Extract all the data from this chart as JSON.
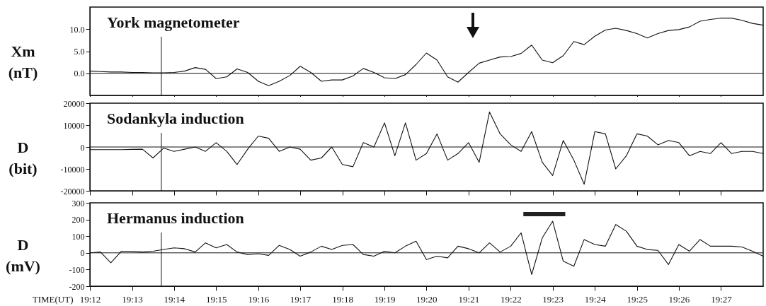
{
  "chart_data": [
    {
      "type": "line",
      "title": "York magnetometer",
      "ylabel": "Xm (nT)",
      "tick_labels": "y",
      "x": [
        19.2,
        19.2042,
        19.2083,
        19.2125,
        19.2167,
        19.2208,
        19.225,
        19.2292,
        19.2333,
        19.2375,
        19.2417,
        19.2458,
        19.25,
        19.2542,
        19.2583,
        19.2625,
        19.2667,
        19.2708,
        19.275,
        19.2792,
        19.2833,
        19.2875,
        19.2917,
        19.2958,
        19.3,
        19.3042,
        19.3083,
        19.3125,
        19.3167,
        19.3208,
        19.325,
        19.3292,
        19.3333,
        19.3375,
        19.3417,
        19.3458,
        19.35,
        19.3542,
        19.3583,
        19.3625,
        19.3667,
        19.3708,
        19.375,
        19.3792,
        19.3833,
        19.3875,
        19.3917,
        19.3958,
        19.4,
        19.4042,
        19.4083,
        19.4125,
        19.4167,
        19.4208,
        19.425,
        19.4292,
        19.4333,
        19.4375,
        19.4417,
        19.4458,
        19.45,
        19.4542,
        19.4583,
        19.4625,
        19.4667
      ],
      "xticks": [
        {
          "value": 19.2,
          "label": null
        },
        {
          "value": 19.2167,
          "label": null
        },
        {
          "value": 19.2333,
          "label": null
        },
        {
          "value": 19.25,
          "label": null
        },
        {
          "value": 19.2667,
          "label": null
        },
        {
          "value": 19.2833,
          "label": null
        },
        {
          "value": 19.3,
          "label": null
        },
        {
          "value": 19.3167,
          "label": null
        },
        {
          "value": 19.3333,
          "label": null
        },
        {
          "value": 19.35,
          "label": null
        },
        {
          "value": 19.3667,
          "label": null
        },
        {
          "value": 19.3833,
          "label": null
        },
        {
          "value": 19.4,
          "label": null
        },
        {
          "value": 19.4167,
          "label": null
        },
        {
          "value": 19.4333,
          "label": null
        },
        {
          "value": 19.45,
          "label": null
        }
      ],
      "series": [
        {
          "color": "#111111",
          "values": [
            0.5,
            0.4,
            0.3,
            0.3,
            0.2,
            0.2,
            0.1,
            0.1,
            0.2,
            0.5,
            1.3,
            0.9,
            -1.2,
            -0.8,
            1.0,
            0.2,
            -1.8,
            -2.8,
            -1.8,
            -0.5,
            1.6,
            0.2,
            -1.8,
            -1.5,
            -1.5,
            -0.6,
            1.1,
            0.2,
            -1.0,
            -1.2,
            -0.3,
            2.0,
            4.6,
            3.0,
            -0.8,
            -2.0,
            0.2,
            2.3,
            3.0,
            3.7,
            3.8,
            4.5,
            6.4,
            3.0,
            2.4,
            4.0,
            7.2,
            6.5,
            8.4,
            9.8,
            10.2,
            9.7,
            9.0,
            8.0,
            9.0,
            9.7,
            9.9,
            10.5,
            11.8,
            12.2,
            12.5,
            12.5,
            12.0,
            11.3,
            10.9
          ]
        }
      ],
      "xlim": [
        19.2,
        19.4667
      ],
      "ylim": [
        -5,
        15
      ],
      "yticks": [
        {
          "value": 0,
          "label": "0.0"
        },
        {
          "value": 5,
          "label": "5.0"
        },
        {
          "value": 10,
          "label": "10.0"
        }
      ],
      "ref_lines": [
        {
          "axis": "y",
          "value": 0,
          "color": "#111111"
        },
        {
          "axis": "x",
          "value": 19.2283,
          "color": "#111111"
        }
      ]
    },
    {
      "type": "line",
      "title": "Sodankyla  induction",
      "ylabel": "D (bit)",
      "tick_labels": "y",
      "x": [
        19.2,
        19.2042,
        19.2083,
        19.2125,
        19.2167,
        19.2208,
        19.225,
        19.2292,
        19.2333,
        19.2375,
        19.2417,
        19.2458,
        19.25,
        19.2542,
        19.2583,
        19.2625,
        19.2667,
        19.2708,
        19.275,
        19.2792,
        19.2833,
        19.2875,
        19.2917,
        19.2958,
        19.3,
        19.3042,
        19.3083,
        19.3125,
        19.3167,
        19.3208,
        19.325,
        19.3292,
        19.3333,
        19.3375,
        19.3417,
        19.3458,
        19.35,
        19.3542,
        19.3583,
        19.3625,
        19.3667,
        19.3708,
        19.375,
        19.3792,
        19.3833,
        19.3875,
        19.3917,
        19.3958,
        19.4,
        19.4042,
        19.4083,
        19.4125,
        19.4167,
        19.4208,
        19.425,
        19.4292,
        19.4333,
        19.4375,
        19.4417,
        19.4458,
        19.45,
        19.4542,
        19.4583,
        19.4625,
        19.4667
      ],
      "xticks": [
        {
          "value": 19.2,
          "label": null
        },
        {
          "value": 19.2167,
          "label": null
        },
        {
          "value": 19.2333,
          "label": null
        },
        {
          "value": 19.25,
          "label": null
        },
        {
          "value": 19.2667,
          "label": null
        },
        {
          "value": 19.2833,
          "label": null
        },
        {
          "value": 19.3,
          "label": null
        },
        {
          "value": 19.3167,
          "label": null
        },
        {
          "value": 19.3333,
          "label": null
        },
        {
          "value": 19.35,
          "label": null
        },
        {
          "value": 19.3667,
          "label": null
        },
        {
          "value": 19.3833,
          "label": null
        },
        {
          "value": 19.4,
          "label": null
        },
        {
          "value": 19.4167,
          "label": null
        },
        {
          "value": 19.4333,
          "label": null
        },
        {
          "value": 19.45,
          "label": null
        }
      ],
      "series": [
        {
          "color": "#111111",
          "values": [
            -1200,
            -1200,
            -1200,
            -1200,
            -1100,
            -1000,
            -5000,
            -500,
            -2000,
            -1000,
            0,
            -2000,
            2000,
            -2000,
            -8000,
            -1000,
            5000,
            4000,
            -2000,
            0,
            -1000,
            -6000,
            -5000,
            0,
            -8000,
            -9000,
            2000,
            0,
            11000,
            -4000,
            11000,
            -6000,
            -3000,
            6000,
            -6000,
            -3000,
            2000,
            -7000,
            16000,
            6000,
            1000,
            -2000,
            7000,
            -7000,
            -13000,
            3000,
            -6000,
            -17000,
            7000,
            6000,
            -10000,
            -4000,
            6000,
            5000,
            1000,
            3000,
            2000,
            -4000,
            -2000,
            -3000,
            2000,
            -3000,
            -2000,
            -2000,
            -3000
          ]
        }
      ],
      "xlim": [
        19.2,
        19.4667
      ],
      "ylim": [
        -20000,
        20000
      ],
      "yticks": [
        -20000,
        -10000,
        0,
        10000,
        20000
      ],
      "ref_lines": [
        {
          "axis": "y",
          "value": 0,
          "color": "#111111"
        },
        {
          "axis": "x",
          "value": 19.2283,
          "color": "#111111"
        }
      ]
    },
    {
      "type": "line",
      "title": "Hermanus  induction",
      "ylabel": "D (mV)",
      "xlabel": "TIME(UT)",
      "x": [
        19.2,
        19.2042,
        19.2083,
        19.2125,
        19.2167,
        19.2208,
        19.225,
        19.2292,
        19.2333,
        19.2375,
        19.2417,
        19.2458,
        19.25,
        19.2542,
        19.2583,
        19.2625,
        19.2667,
        19.2708,
        19.275,
        19.2792,
        19.2833,
        19.2875,
        19.2917,
        19.2958,
        19.3,
        19.3042,
        19.3083,
        19.3125,
        19.3167,
        19.3208,
        19.325,
        19.3292,
        19.3333,
        19.3375,
        19.3417,
        19.3458,
        19.35,
        19.3542,
        19.3583,
        19.3625,
        19.3667,
        19.3708,
        19.375,
        19.3792,
        19.3833,
        19.3875,
        19.3917,
        19.3958,
        19.4,
        19.4042,
        19.4083,
        19.4125,
        19.4167,
        19.4208,
        19.425,
        19.4292,
        19.4333,
        19.4375,
        19.4417,
        19.4458,
        19.45,
        19.4542,
        19.4583,
        19.4625,
        19.4667
      ],
      "series": [
        {
          "color": "#111111",
          "values": [
            0,
            5,
            -60,
            10,
            10,
            5,
            10,
            20,
            30,
            25,
            5,
            60,
            30,
            50,
            5,
            -10,
            -5,
            -15,
            45,
            20,
            -20,
            5,
            40,
            20,
            45,
            50,
            -10,
            -20,
            10,
            0,
            40,
            70,
            -40,
            -20,
            -30,
            40,
            25,
            0,
            60,
            5,
            40,
            120,
            -130,
            90,
            190,
            -50,
            -80,
            80,
            50,
            40,
            170,
            130,
            40,
            20,
            15,
            -70,
            50,
            10,
            80,
            40,
            40,
            40,
            35,
            10,
            -20
          ]
        }
      ],
      "xlim": [
        19.2,
        19.4667
      ],
      "xticks": [
        {
          "value": 19.2,
          "label": "19:12"
        },
        {
          "value": 19.2167,
          "label": "19:13"
        },
        {
          "value": 19.2333,
          "label": "19:14"
        },
        {
          "value": 19.25,
          "label": "19:15"
        },
        {
          "value": 19.2667,
          "label": "19:16"
        },
        {
          "value": 19.2833,
          "label": "19:17"
        },
        {
          "value": 19.3,
          "label": "19:18"
        },
        {
          "value": 19.3167,
          "label": "19:19"
        },
        {
          "value": 19.3333,
          "label": "19:20"
        },
        {
          "value": 19.35,
          "label": "19:21"
        },
        {
          "value": 19.3667,
          "label": "19:22"
        },
        {
          "value": 19.3833,
          "label": "19:23"
        },
        {
          "value": 19.4,
          "label": "19:24"
        },
        {
          "value": 19.4167,
          "label": "19:25"
        },
        {
          "value": 19.4333,
          "label": "19:26"
        },
        {
          "value": 19.45,
          "label": "19:27"
        }
      ],
      "ylim": [
        -200,
        300
      ],
      "yticks": [
        -200,
        -100,
        0,
        100,
        200,
        300
      ],
      "ref_lines": [
        {
          "axis": "y",
          "value": 0,
          "color": "#111111"
        },
        {
          "axis": "x",
          "value": 19.2283,
          "color": "#111111"
        }
      ],
      "bands": [
        {
          "axis": "x",
          "from": 19.3717,
          "to": 19.3883,
          "color": "#222222"
        }
      ]
    }
  ]
}
